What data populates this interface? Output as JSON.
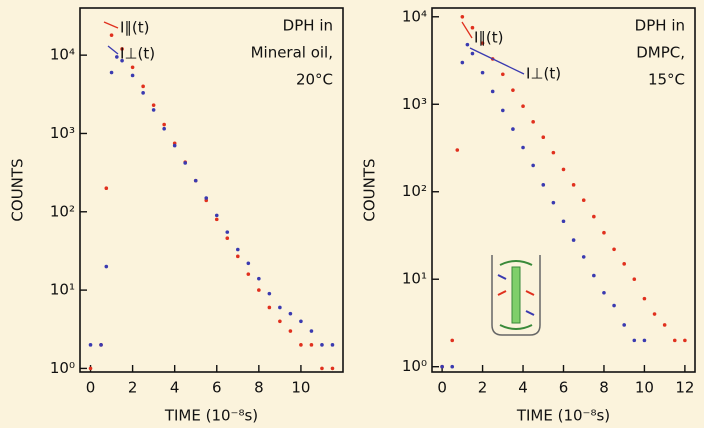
{
  "chart_data": [
    {
      "type": "scatter",
      "log_y": true,
      "xlabel": "TIME (10⁻⁸s)",
      "ylabel": "COUNTS",
      "annotation": [
        "DPH in",
        "Mineral oil,",
        "20°C"
      ],
      "xlim": [
        -0.5,
        12
      ],
      "xticks": [
        0,
        2,
        4,
        6,
        8,
        10
      ],
      "ylim": [
        0.9,
        40000
      ],
      "yticks": [
        {
          "value": 1,
          "label": "10⁰"
        },
        {
          "value": 10,
          "label": "10¹"
        },
        {
          "value": 100,
          "label": "10²"
        },
        {
          "value": 1000,
          "label": "10³"
        },
        {
          "value": 10000,
          "label": "10⁴"
        }
      ],
      "series": [
        {
          "name": "I∥(t)",
          "color": "#e0301e",
          "x": [
            0,
            0.5,
            0.75,
            1,
            1.5,
            2,
            2.5,
            3,
            3.5,
            4,
            4.5,
            5,
            5.5,
            6,
            6.5,
            7,
            7.5,
            8,
            8.5,
            9,
            9.5,
            10,
            10.5,
            11,
            11.5
          ],
          "values": [
            1,
            2,
            200,
            18000,
            12000,
            7000,
            4000,
            2300,
            1300,
            750,
            430,
            250,
            140,
            80,
            46,
            27,
            16,
            10,
            6,
            4,
            3,
            2,
            2,
            1,
            1
          ]
        },
        {
          "name": "I⊥(t)",
          "color": "#3a3ab0",
          "x": [
            0,
            0.5,
            0.75,
            1,
            1.25,
            1.5,
            2,
            2.5,
            3,
            3.5,
            4,
            4.5,
            5,
            5.5,
            6,
            6.5,
            7,
            7.5,
            8,
            8.5,
            9,
            9.5,
            10,
            10.5,
            11,
            11.5
          ],
          "values": [
            2,
            2,
            20,
            6000,
            9500,
            8500,
            5500,
            3300,
            2000,
            1150,
            700,
            420,
            250,
            150,
            90,
            55,
            33,
            22,
            14,
            9,
            6,
            5,
            4,
            3,
            2,
            2
          ]
        }
      ]
    },
    {
      "type": "scatter",
      "log_y": true,
      "xlabel": "TIME (10⁻⁸s)",
      "ylabel": "COUNTS",
      "annotation": [
        "DPH in",
        "DMPC,",
        "15°C"
      ],
      "xlim": [
        -0.5,
        12.5
      ],
      "xticks": [
        0,
        2,
        4,
        6,
        8,
        10,
        12
      ],
      "ylim": [
        0.87,
        12600
      ],
      "yticks": [
        {
          "value": 1,
          "label": "10⁰"
        },
        {
          "value": 10,
          "label": "10¹"
        },
        {
          "value": 100,
          "label": "10²"
        },
        {
          "value": 1000,
          "label": "10³"
        },
        {
          "value": 10000,
          "label": "10⁴"
        }
      ],
      "series": [
        {
          "name": "I∥(t)",
          "color": "#e0301e",
          "x": [
            0,
            0.5,
            0.75,
            1,
            1.5,
            2,
            2.5,
            3,
            3.5,
            4,
            4.5,
            5,
            5.5,
            6,
            6.5,
            7,
            7.5,
            8,
            8.5,
            9,
            9.5,
            10,
            10.5,
            11,
            11.5,
            12
          ],
          "values": [
            1,
            2,
            300,
            10000,
            7500,
            5000,
            3300,
            2200,
            1450,
            950,
            630,
            420,
            280,
            180,
            120,
            80,
            52,
            34,
            22,
            15,
            10,
            6,
            4,
            3,
            2,
            2
          ]
        },
        {
          "name": "I⊥(t)",
          "color": "#3a3ab0",
          "x": [
            0,
            0.5,
            1,
            1.25,
            1.5,
            2,
            2.5,
            3,
            3.5,
            4,
            4.5,
            5,
            5.5,
            6,
            6.5,
            7,
            7.5,
            8,
            8.5,
            9,
            9.5,
            10
          ],
          "values": [
            1,
            1,
            3000,
            4800,
            3800,
            2300,
            1400,
            850,
            520,
            320,
            200,
            120,
            75,
            46,
            28,
            18,
            11,
            7,
            5,
            3,
            2,
            2
          ]
        }
      ]
    }
  ]
}
